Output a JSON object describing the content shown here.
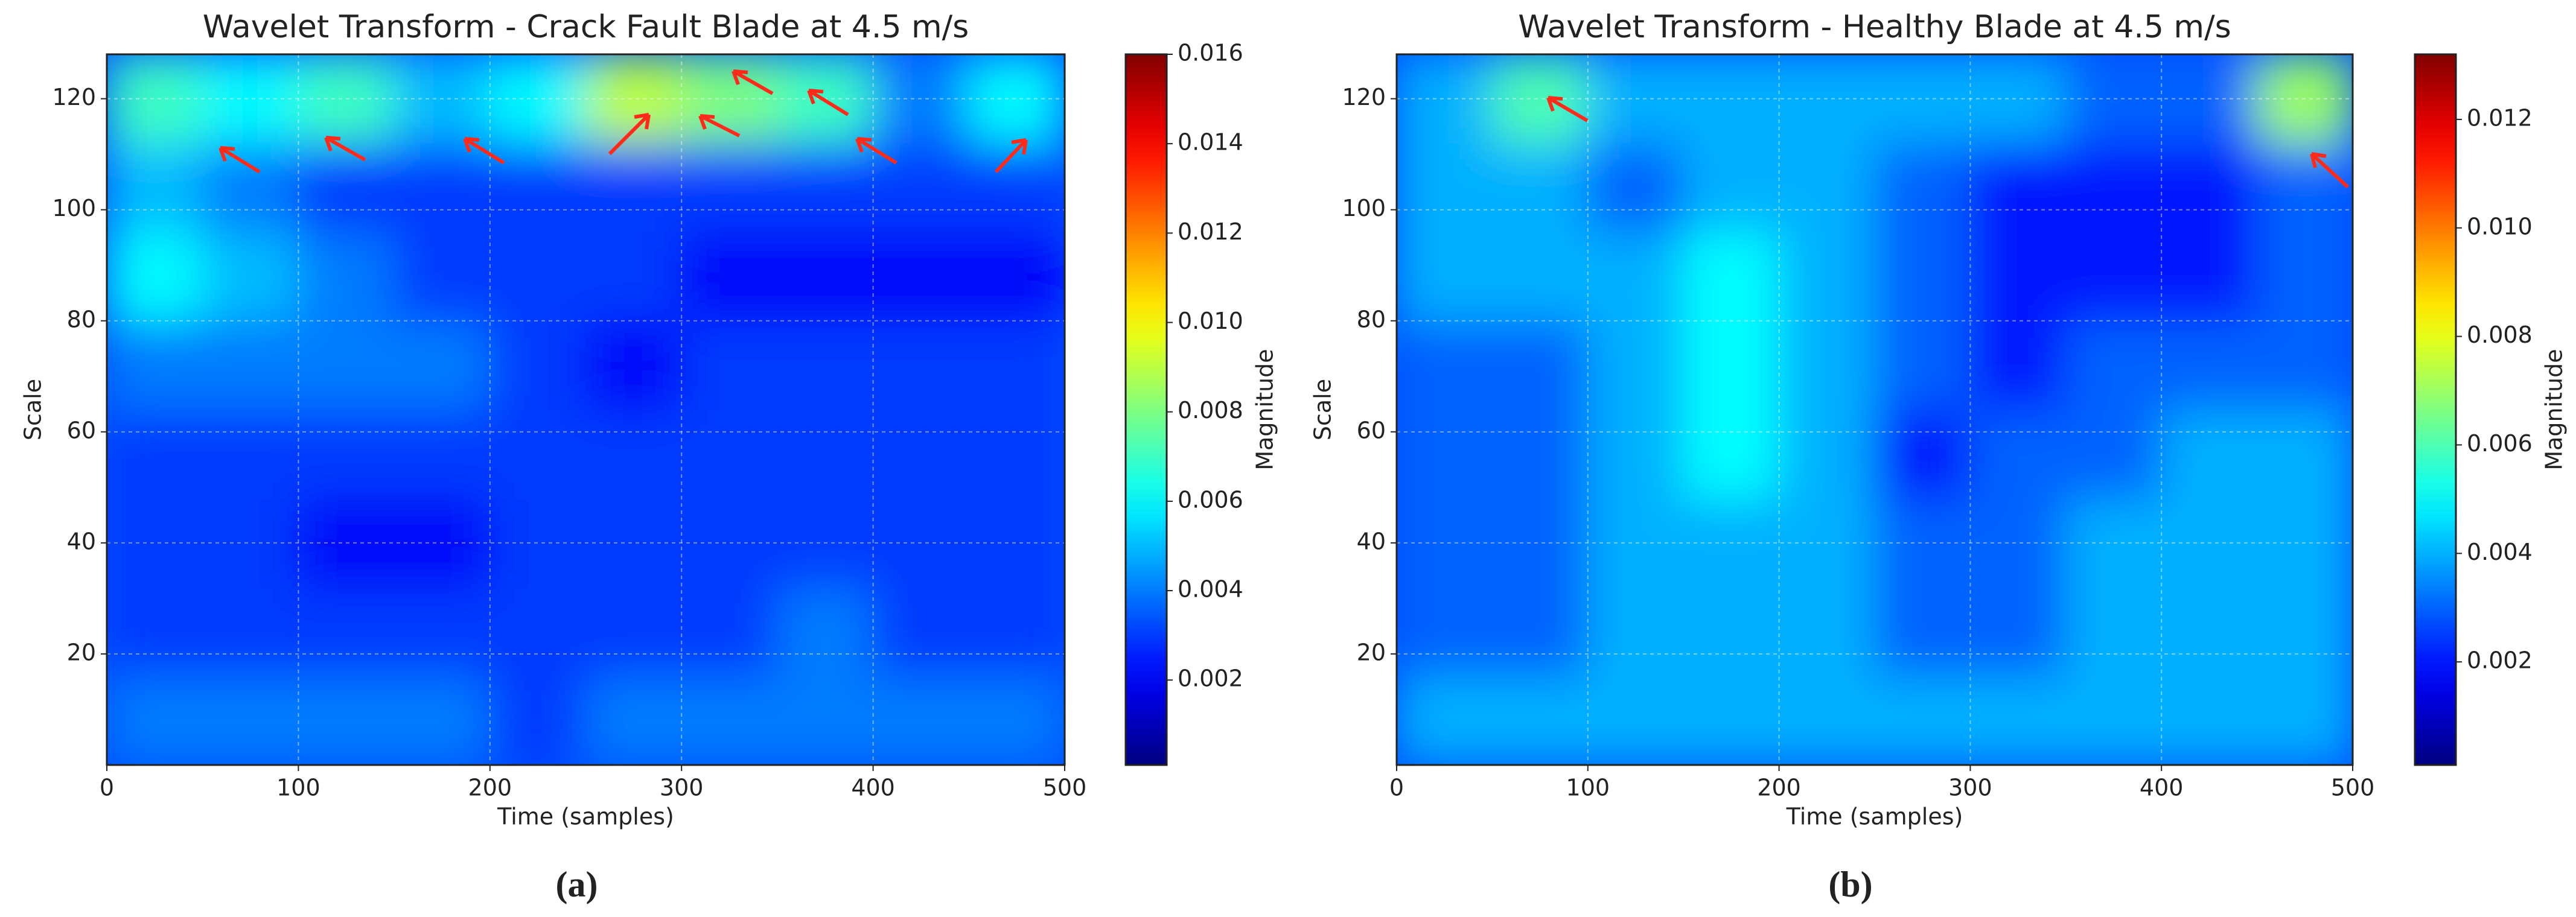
{
  "chart_data": [
    {
      "type": "heatmap",
      "title": "Wavelet Transform - Crack Fault Blade at 4.5 m/s",
      "xlabel": "Time (samples)",
      "ylabel": "Scale",
      "colorbar_label": "Magnitude",
      "caption": "(a)",
      "colormap": "jet",
      "grid": true,
      "xlim": [
        0,
        500
      ],
      "ylim": [
        0,
        128
      ],
      "xticks": [
        0,
        100,
        200,
        300,
        400,
        500
      ],
      "yticks": [
        20,
        40,
        60,
        80,
        100,
        120
      ],
      "clim": [
        0.0001,
        0.016
      ],
      "cticks": [
        0.002,
        0.004,
        0.006,
        0.008,
        {
          "value": 0.01,
          "label": "0.010"
        },
        0.012,
        0.014,
        0.016
      ],
      "xbins": [
        0,
        50,
        100,
        150,
        200,
        250,
        300,
        350,
        400,
        450,
        500
      ],
      "ybins": [
        0,
        16,
        32,
        48,
        64,
        80,
        96,
        112,
        128
      ],
      "values": [
        [
          0.004,
          0.004,
          0.004,
          0.004,
          0.003,
          0.004,
          0.004,
          0.004,
          0.004,
          0.004
        ],
        [
          0.003,
          0.003,
          0.003,
          0.003,
          0.003,
          0.003,
          0.003,
          0.004,
          0.003,
          0.003
        ],
        [
          0.003,
          0.003,
          0.002,
          0.002,
          0.003,
          0.003,
          0.003,
          0.003,
          0.003,
          0.003
        ],
        [
          0.003,
          0.003,
          0.003,
          0.003,
          0.003,
          0.003,
          0.003,
          0.003,
          0.003,
          0.003
        ],
        [
          0.004,
          0.004,
          0.004,
          0.004,
          0.003,
          0.002,
          0.003,
          0.003,
          0.003,
          0.003
        ],
        [
          0.006,
          0.005,
          0.004,
          0.003,
          0.003,
          0.003,
          0.002,
          0.002,
          0.002,
          0.002
        ],
        [
          0.005,
          0.004,
          0.003,
          0.003,
          0.003,
          0.003,
          0.003,
          0.003,
          0.003,
          0.003
        ],
        [
          0.007,
          0.006,
          0.007,
          0.005,
          0.006,
          0.009,
          0.008,
          0.007,
          0.004,
          0.006
        ]
      ]
    },
    {
      "type": "heatmap",
      "title": "Wavelet Transform - Healthy Blade at 4.5 m/s",
      "xlabel": "Time (samples)",
      "ylabel": "Scale",
      "colorbar_label": "Magnitude",
      "caption": "(b)",
      "colormap": "jet",
      "grid": true,
      "xlim": [
        0,
        500
      ],
      "ylim": [
        0,
        128
      ],
      "xticks": [
        0,
        100,
        200,
        300,
        400,
        500
      ],
      "yticks": [
        20,
        40,
        60,
        80,
        100,
        120
      ],
      "clim": [
        0.0001,
        0.0132
      ],
      "cticks": [
        0.002,
        0.004,
        0.006,
        0.008,
        {
          "value": 0.01,
          "label": "0.010"
        },
        0.012
      ],
      "xbins": [
        0,
        50,
        100,
        150,
        200,
        250,
        300,
        350,
        400,
        450,
        500
      ],
      "ybins": [
        0,
        16,
        32,
        48,
        64,
        80,
        96,
        112,
        128
      ],
      "values": [
        [
          0.004,
          0.004,
          0.004,
          0.004,
          0.004,
          0.004,
          0.004,
          0.004,
          0.004,
          0.004
        ],
        [
          0.003,
          0.003,
          0.004,
          0.004,
          0.004,
          0.003,
          0.003,
          0.004,
          0.004,
          0.004
        ],
        [
          0.003,
          0.003,
          0.004,
          0.004,
          0.004,
          0.003,
          0.003,
          0.004,
          0.004,
          0.004
        ],
        [
          0.003,
          0.003,
          0.004,
          0.005,
          0.004,
          0.002,
          0.003,
          0.003,
          0.004,
          0.004
        ],
        [
          0.003,
          0.003,
          0.004,
          0.005,
          0.004,
          0.003,
          0.002,
          0.003,
          0.003,
          0.003
        ],
        [
          0.004,
          0.004,
          0.004,
          0.005,
          0.004,
          0.003,
          0.002,
          0.002,
          0.002,
          0.003
        ],
        [
          0.004,
          0.004,
          0.003,
          0.004,
          0.004,
          0.003,
          0.002,
          0.002,
          0.002,
          0.003
        ],
        [
          0.004,
          0.006,
          0.004,
          0.004,
          0.004,
          0.004,
          0.004,
          0.003,
          0.003,
          0.007
        ]
      ]
    }
  ]
}
